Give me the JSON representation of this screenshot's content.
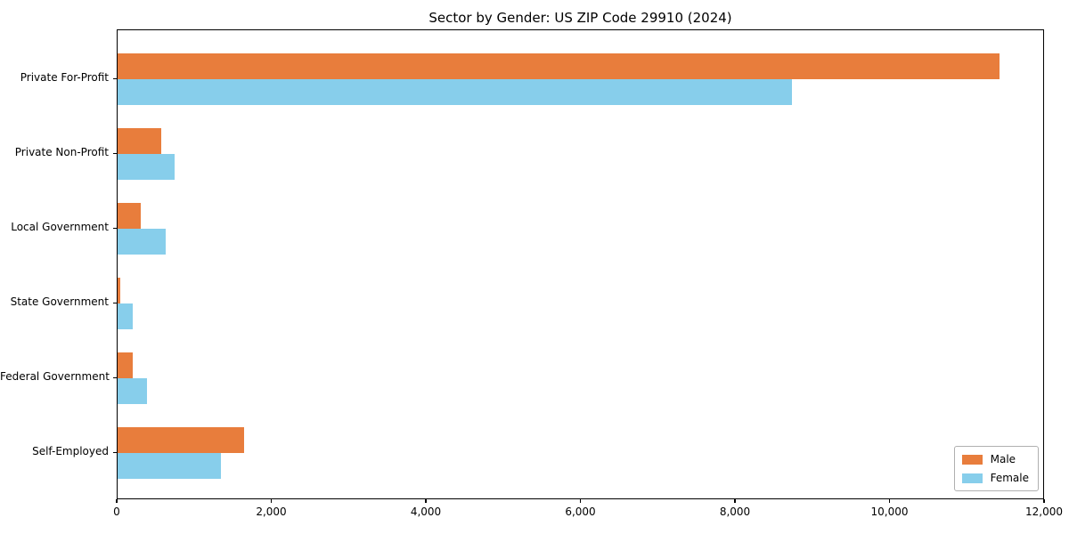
{
  "chart_data": {
    "type": "bar",
    "orientation": "horizontal",
    "title": "Sector by Gender: US ZIP Code 29910 (2024)",
    "categories": [
      "Private For-Profit",
      "Private Non-Profit",
      "Local Government",
      "State Government",
      "Federal Government",
      "Self-Employed"
    ],
    "series": [
      {
        "name": "Male",
        "color": "#e87d3c",
        "values": [
          11430,
          565,
          295,
          35,
          200,
          1635
        ]
      },
      {
        "name": "Female",
        "color": "#87ceeb",
        "values": [
          8740,
          735,
          620,
          200,
          385,
          1335
        ]
      }
    ],
    "xlabel": "",
    "ylabel": "",
    "xlim": [
      0,
      12000
    ],
    "xticks": [
      0,
      2000,
      4000,
      6000,
      8000,
      10000,
      12000
    ],
    "xtick_labels": [
      "0",
      "2,000",
      "4,000",
      "6,000",
      "8,000",
      "10,000",
      "12,000"
    ],
    "grid": false,
    "legend": {
      "position": "lower right",
      "entries": [
        "Male",
        "Female"
      ]
    }
  }
}
